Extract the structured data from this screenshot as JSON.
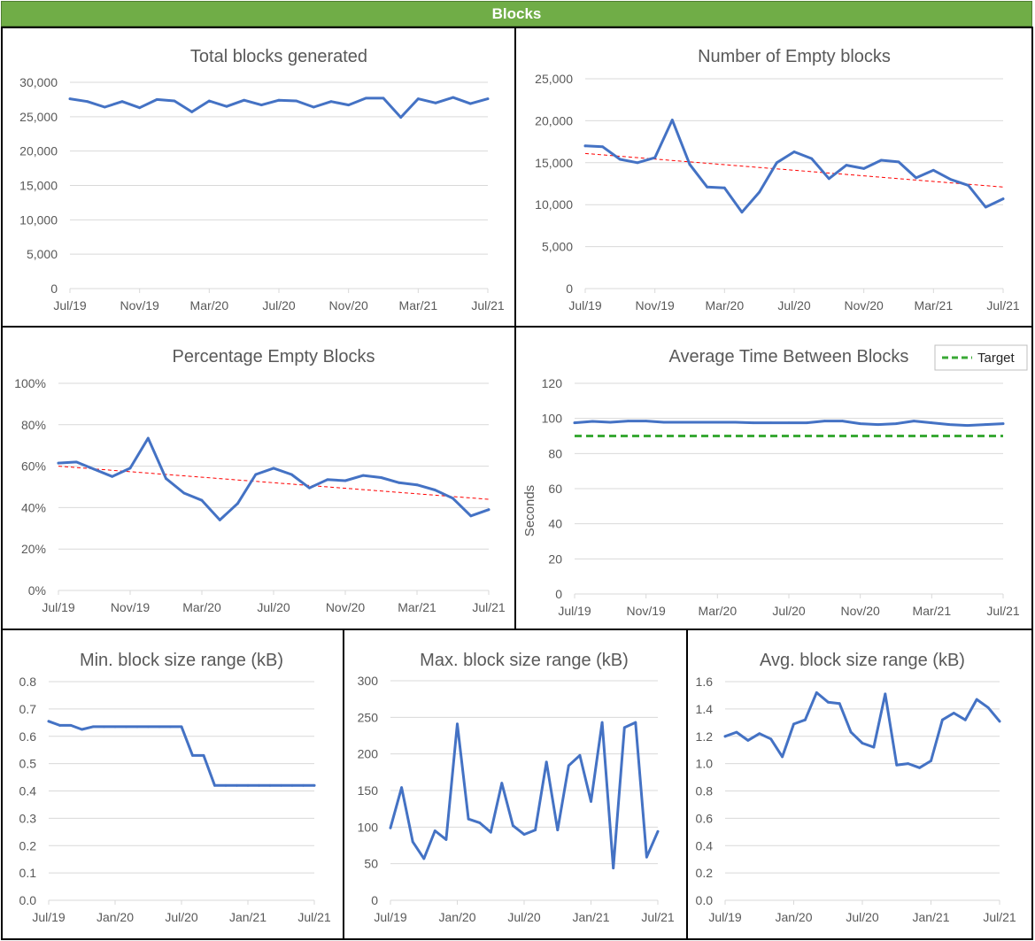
{
  "page_title": "Blocks",
  "colors": {
    "banner": "#70ad47",
    "series": "#4472c4",
    "trend": "#ff0000",
    "target": "#39a935",
    "grid": "#d9d9d9",
    "text": "#595959"
  },
  "chart_data": [
    {
      "id": "total-blocks",
      "type": "line",
      "title": "Total blocks generated",
      "xlabel": "",
      "ylabel": "",
      "ylim": [
        0,
        30000
      ],
      "yticks": [
        0,
        5000,
        10000,
        15000,
        20000,
        25000,
        30000
      ],
      "ytick_labels": [
        "0",
        "5,000",
        "10,000",
        "15,000",
        "20,000",
        "25,000",
        "30,000"
      ],
      "xticks": [
        0,
        4,
        8,
        12,
        16,
        20,
        24
      ],
      "xtick_labels": [
        "Jul/19",
        "Nov/19",
        "Mar/20",
        "Jul/20",
        "Nov/20",
        "Mar/21",
        "Jul/21"
      ],
      "x_count": 25,
      "series": [
        {
          "name": "Total blocks generated",
          "values": [
            27600,
            27200,
            26400,
            27200,
            26300,
            27500,
            27300,
            25700,
            27300,
            26500,
            27400,
            26700,
            27400,
            27300,
            26400,
            27200,
            26700,
            27700,
            27700,
            24900,
            27600,
            27000,
            27800,
            26900,
            27600
          ]
        }
      ]
    },
    {
      "id": "empty-blocks",
      "type": "line",
      "title": "Number of Empty blocks",
      "xlabel": "",
      "ylabel": "",
      "ylim": [
        0,
        25000
      ],
      "yticks": [
        0,
        5000,
        10000,
        15000,
        20000,
        25000
      ],
      "ytick_labels": [
        "0",
        "5,000",
        "10,000",
        "15,000",
        "20,000",
        "25,000"
      ],
      "xticks": [
        0,
        4,
        8,
        12,
        16,
        20,
        24
      ],
      "xtick_labels": [
        "Jul/19",
        "Nov/19",
        "Mar/20",
        "Jul/20",
        "Nov/20",
        "Mar/21",
        "Jul/21"
      ],
      "x_count": 25,
      "series": [
        {
          "name": "Empty blocks",
          "values": [
            17000,
            16900,
            15400,
            15000,
            15600,
            20100,
            14800,
            12100,
            12000,
            9100,
            11500,
            15000,
            16300,
            15500,
            13100,
            14700,
            14300,
            15300,
            15100,
            13200,
            14100,
            13000,
            12300,
            9700,
            10700
          ]
        }
      ],
      "trendline": {
        "from": 16100,
        "to": 12100
      }
    },
    {
      "id": "percentage-empty",
      "type": "line",
      "title": "Percentage Empty Blocks",
      "xlabel": "",
      "ylabel": "",
      "ylim": [
        0,
        100
      ],
      "yticks": [
        0,
        20,
        40,
        60,
        80,
        100
      ],
      "ytick_labels": [
        "0%",
        "20%",
        "40%",
        "60%",
        "80%",
        "100%"
      ],
      "xticks": [
        0,
        4,
        8,
        12,
        16,
        20,
        24
      ],
      "xtick_labels": [
        "Jul/19",
        "Nov/19",
        "Mar/20",
        "Jul/20",
        "Nov/20",
        "Mar/21",
        "Jul/21"
      ],
      "x_count": 25,
      "series": [
        {
          "name": "Percentage empty",
          "values": [
            61.5,
            62,
            58.5,
            55,
            59,
            73.5,
            54,
            47,
            43.5,
            34,
            42,
            56,
            59,
            56,
            49.5,
            53.5,
            53,
            55.5,
            54.5,
            52,
            51,
            48.5,
            44.5,
            36,
            39
          ]
        }
      ],
      "trendline": {
        "from": 60,
        "to": 44
      }
    },
    {
      "id": "avg-time",
      "type": "line",
      "title": "Average Time Between Blocks",
      "xlabel": "",
      "ylabel": "Seconds",
      "ylim": [
        0,
        120
      ],
      "yticks": [
        0,
        20,
        40,
        60,
        80,
        100,
        120
      ],
      "ytick_labels": [
        "0",
        "20",
        "40",
        "60",
        "80",
        "100",
        "120"
      ],
      "xticks": [
        0,
        4,
        8,
        12,
        16,
        20,
        24
      ],
      "xtick_labels": [
        "Jul/19",
        "Nov/19",
        "Mar/20",
        "Jul/20",
        "Nov/20",
        "Mar/21",
        "Jul/21"
      ],
      "x_count": 25,
      "series": [
        {
          "name": "Average time",
          "values": [
            97.5,
            98.3,
            97.8,
            98.5,
            98.5,
            97.8,
            97.8,
            97.8,
            97.8,
            97.8,
            97.5,
            97.5,
            97.5,
            97.5,
            98.5,
            98.5,
            97,
            96.5,
            97,
            98.5,
            97.5,
            96.5,
            96,
            96.5,
            97
          ]
        }
      ],
      "target": {
        "name": "Target",
        "value": 90
      },
      "legend": {
        "position": "top-right",
        "entries": [
          "Target"
        ]
      }
    },
    {
      "id": "min-block-size",
      "type": "line",
      "title": "Min. block size range (kB)",
      "xlabel": "",
      "ylabel": "",
      "ylim": [
        0,
        0.8
      ],
      "yticks": [
        0,
        0.1,
        0.2,
        0.3,
        0.4,
        0.5,
        0.6,
        0.7,
        0.8
      ],
      "ytick_labels": [
        "0.0",
        "0.1",
        "0.2",
        "0.3",
        "0.4",
        "0.5",
        "0.6",
        "0.7",
        "0.8"
      ],
      "xticks": [
        0,
        6,
        12,
        18,
        24
      ],
      "xtick_labels": [
        "Jul/19",
        "Jan/20",
        "Jul/20",
        "Jan/21",
        "Jul/21"
      ],
      "x_count": 25,
      "series": [
        {
          "name": "Min block size",
          "values": [
            0.655,
            0.64,
            0.64,
            0.625,
            0.635,
            0.635,
            0.635,
            0.635,
            0.635,
            0.635,
            0.635,
            0.635,
            0.635,
            0.53,
            0.53,
            0.42,
            0.42,
            0.42,
            0.42,
            0.42,
            0.42,
            0.42,
            0.42,
            0.42,
            0.42
          ]
        }
      ]
    },
    {
      "id": "max-block-size",
      "type": "line",
      "title": "Max. block size range (kB)",
      "xlabel": "",
      "ylabel": "",
      "ylim": [
        0,
        300
      ],
      "yticks": [
        0,
        50,
        100,
        150,
        200,
        250,
        300
      ],
      "ytick_labels": [
        "0",
        "50",
        "100",
        "150",
        "200",
        "250",
        "300"
      ],
      "xticks": [
        0,
        6,
        12,
        18,
        24
      ],
      "xtick_labels": [
        "Jul/19",
        "Jan/20",
        "Jul/20",
        "Jan/21",
        "Jul/21"
      ],
      "x_count": 25,
      "series": [
        {
          "name": "Max block size",
          "values": [
            99,
            154,
            80,
            57,
            95,
            83,
            241,
            111,
            106,
            93,
            160,
            102,
            90,
            96,
            189,
            96,
            184,
            198,
            135,
            243,
            44,
            236,
            243,
            59,
            94
          ]
        }
      ]
    },
    {
      "id": "avg-block-size",
      "type": "line",
      "title": "Avg. block size range (kB)",
      "xlabel": "",
      "ylabel": "",
      "ylim": [
        0,
        1.6
      ],
      "yticks": [
        0,
        0.2,
        0.4,
        0.6,
        0.8,
        1.0,
        1.2,
        1.4,
        1.6
      ],
      "ytick_labels": [
        "0.0",
        "0.2",
        "0.4",
        "0.6",
        "0.8",
        "1.0",
        "1.2",
        "1.4",
        "1.6"
      ],
      "xticks": [
        0,
        6,
        12,
        18,
        24
      ],
      "xtick_labels": [
        "Jul/19",
        "Jan/20",
        "Jul/20",
        "Jan/21",
        "Jul/21"
      ],
      "x_count": 25,
      "series": [
        {
          "name": "Avg block size",
          "values": [
            1.2,
            1.23,
            1.17,
            1.22,
            1.18,
            1.05,
            1.29,
            1.32,
            1.52,
            1.45,
            1.44,
            1.23,
            1.15,
            1.12,
            1.51,
            0.99,
            1.0,
            0.97,
            1.02,
            1.32,
            1.37,
            1.32,
            1.47,
            1.41,
            1.31
          ]
        }
      ]
    }
  ]
}
